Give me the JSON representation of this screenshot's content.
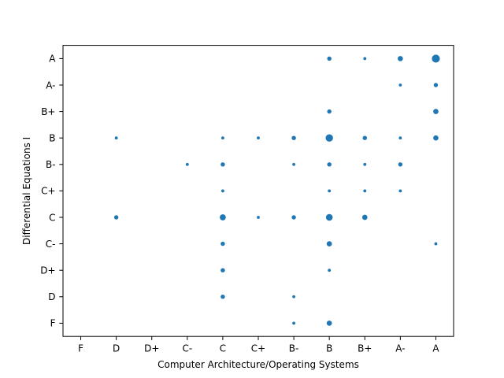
{
  "chart_data": {
    "type": "scatter",
    "xlabel": "Computer Architecture/Operating Systems",
    "ylabel": "Differential Equations I",
    "x_categories": [
      "F",
      "D",
      "D+",
      "C-",
      "C",
      "C+",
      "B-",
      "B",
      "B+",
      "A-",
      "A"
    ],
    "y_categories": [
      "F",
      "D",
      "D+",
      "C-",
      "C",
      "C+",
      "B-",
      "B",
      "B+",
      "A-",
      "A"
    ],
    "size_encoding": "count",
    "grid": false,
    "color": "#1f77b4",
    "points": [
      {
        "x": "B",
        "y": "A",
        "count": 2
      },
      {
        "x": "B+",
        "y": "A",
        "count": 1
      },
      {
        "x": "A-",
        "y": "A",
        "count": 3
      },
      {
        "x": "A",
        "y": "A",
        "count": 7
      },
      {
        "x": "A-",
        "y": "A-",
        "count": 1
      },
      {
        "x": "A",
        "y": "A-",
        "count": 2
      },
      {
        "x": "B",
        "y": "B+",
        "count": 2
      },
      {
        "x": "A",
        "y": "B+",
        "count": 3
      },
      {
        "x": "D",
        "y": "B",
        "count": 1
      },
      {
        "x": "C",
        "y": "B",
        "count": 1
      },
      {
        "x": "C+",
        "y": "B",
        "count": 1
      },
      {
        "x": "B-",
        "y": "B",
        "count": 2
      },
      {
        "x": "B",
        "y": "B",
        "count": 6
      },
      {
        "x": "B+",
        "y": "B",
        "count": 2
      },
      {
        "x": "A-",
        "y": "B",
        "count": 1
      },
      {
        "x": "A",
        "y": "B",
        "count": 3
      },
      {
        "x": "C-",
        "y": "B-",
        "count": 1
      },
      {
        "x": "C",
        "y": "B-",
        "count": 2
      },
      {
        "x": "B-",
        "y": "B-",
        "count": 1
      },
      {
        "x": "B",
        "y": "B-",
        "count": 2
      },
      {
        "x": "B+",
        "y": "B-",
        "count": 1
      },
      {
        "x": "A-",
        "y": "B-",
        "count": 2
      },
      {
        "x": "C",
        "y": "C+",
        "count": 1
      },
      {
        "x": "B",
        "y": "C+",
        "count": 1
      },
      {
        "x": "B+",
        "y": "C+",
        "count": 1
      },
      {
        "x": "A-",
        "y": "C+",
        "count": 1
      },
      {
        "x": "D",
        "y": "C",
        "count": 2
      },
      {
        "x": "C",
        "y": "C",
        "count": 4
      },
      {
        "x": "C+",
        "y": "C",
        "count": 1
      },
      {
        "x": "B-",
        "y": "C",
        "count": 2
      },
      {
        "x": "B",
        "y": "C",
        "count": 5
      },
      {
        "x": "B+",
        "y": "C",
        "count": 3
      },
      {
        "x": "C",
        "y": "C-",
        "count": 2
      },
      {
        "x": "B",
        "y": "C-",
        "count": 3
      },
      {
        "x": "A",
        "y": "C-",
        "count": 1
      },
      {
        "x": "C",
        "y": "D+",
        "count": 2
      },
      {
        "x": "B",
        "y": "D+",
        "count": 1
      },
      {
        "x": "C",
        "y": "D",
        "count": 2
      },
      {
        "x": "B-",
        "y": "D",
        "count": 1
      },
      {
        "x": "B-",
        "y": "F",
        "count": 1
      },
      {
        "x": "B",
        "y": "F",
        "count": 3
      }
    ]
  }
}
